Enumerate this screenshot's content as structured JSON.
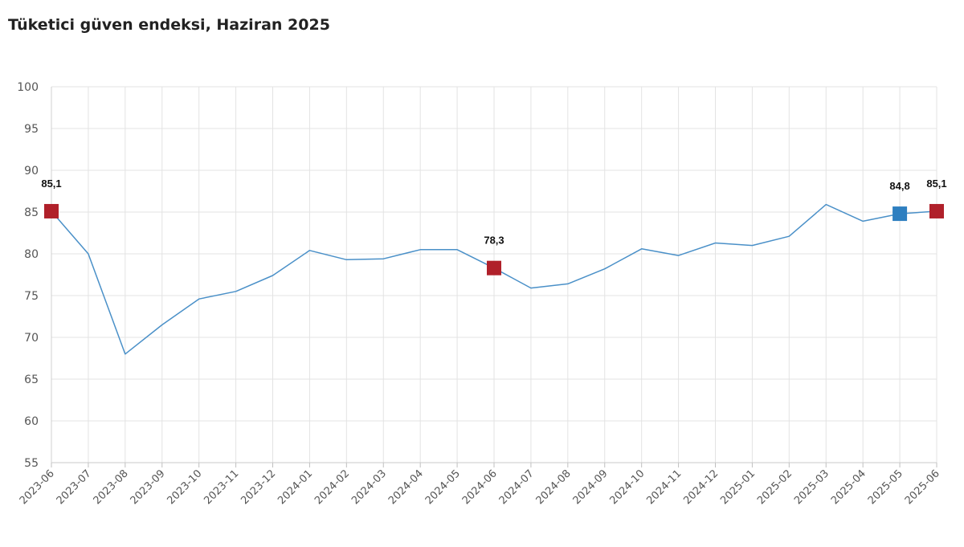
{
  "header": {
    "title": "Tüketici güven endeksi, Haziran 2025"
  },
  "chart_data": {
    "type": "line",
    "title": "Tüketici güven endeksi, Haziran 2025",
    "xlabel": "",
    "ylabel": "",
    "ylim": [
      55,
      100
    ],
    "yticks": [
      "55",
      "60",
      "65",
      "70",
      "75",
      "80",
      "85",
      "90",
      "95",
      "100"
    ],
    "grid": true,
    "legend": "none",
    "categories": [
      "2023-06",
      "2023-07",
      "2023-08",
      "2023-09",
      "2023-10",
      "2023-11",
      "2023-12",
      "2024-01",
      "2024-02",
      "2024-03",
      "2024-04",
      "2024-05",
      "2024-06",
      "2024-07",
      "2024-08",
      "2024-09",
      "2024-10",
      "2024-11",
      "2024-12",
      "2025-01",
      "2025-02",
      "2025-03",
      "2025-04",
      "2025-05",
      "2025-06"
    ],
    "series": [
      {
        "values": [
          85.1,
          80.0,
          68.0,
          71.5,
          74.6,
          75.5,
          77.4,
          80.4,
          79.3,
          79.4,
          80.5,
          80.5,
          78.3,
          75.9,
          76.4,
          78.2,
          80.6,
          79.8,
          81.3,
          81.0,
          82.1,
          85.9,
          83.9,
          84.8,
          85.1
        ],
        "color": "#4a90c8"
      }
    ],
    "highlights": [
      {
        "category": "2023-06",
        "value": 85.1,
        "label": "85,1",
        "color": "#b0202a"
      },
      {
        "category": "2024-06",
        "value": 78.3,
        "label": "78,3",
        "color": "#b0202a"
      },
      {
        "category": "2025-05",
        "value": 84.8,
        "label": "84,8",
        "color": "#2e7fc0"
      },
      {
        "category": "2025-06",
        "value": 85.1,
        "label": "85,1",
        "color": "#b0202a"
      }
    ]
  }
}
